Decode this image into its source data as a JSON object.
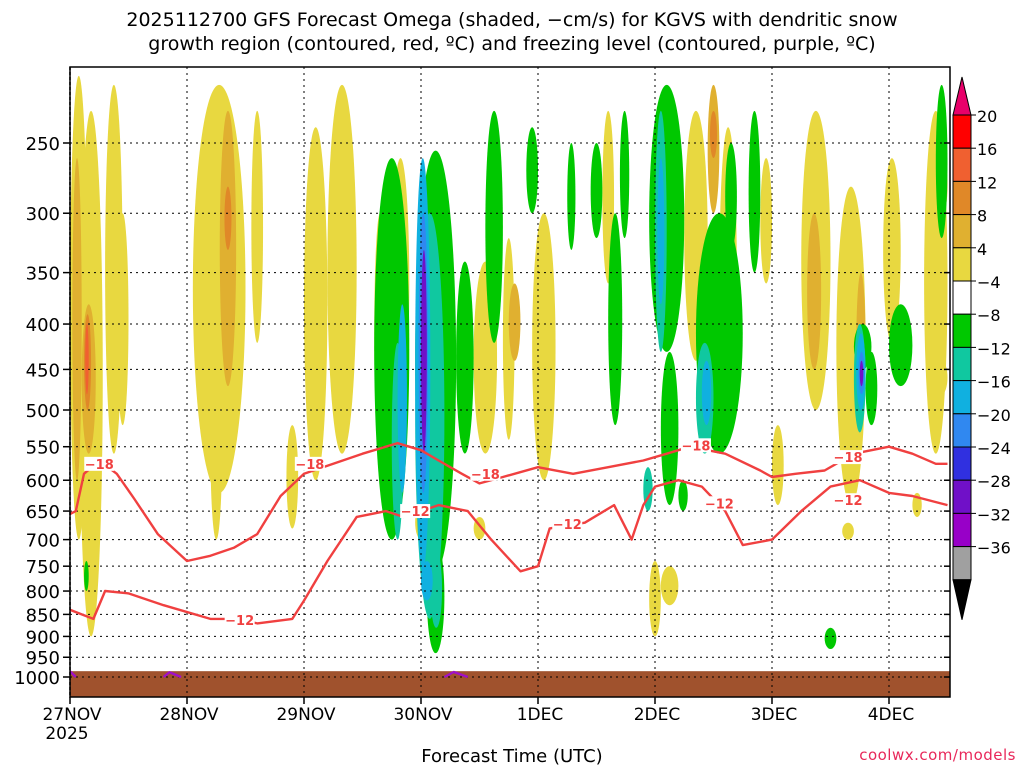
{
  "title": {
    "line1": "2025112700 GFS Forecast Omega (shaded, −cm/s) for KGVS with dendritic snow",
    "line2": "growth region (contoured, red, ºC) and freezing level (contoured, purple, ºC)"
  },
  "xlabel": "Forecast Time (UTC)",
  "credit": "coolwx.com/models",
  "chart_data": {
    "type": "heatmap",
    "title": "2025112700 GFS Forecast Omega (shaded, −cm/s) for KGVS with dendritic snow growth region (contoured, red, ºC) and freezing level (contoured, purple, ºC)",
    "xlabel": "Forecast Time (UTC)",
    "ylabel": "",
    "x_ticks": [
      "27NOV",
      "28NOV",
      "29NOV",
      "30NOV",
      "1DEC",
      "2DEC",
      "3DEC",
      "4DEC"
    ],
    "x_tick_sublabel": "2025",
    "xlim_days_from_27NOV": [
      0,
      7.5
    ],
    "y_ticks": [
      250,
      300,
      350,
      400,
      450,
      500,
      550,
      600,
      650,
      700,
      750,
      800,
      850,
      900,
      950,
      1000
    ],
    "y_axis": "pressure (hPa), inverted, log scale",
    "ylim": [
      1030,
      200
    ],
    "grid": true,
    "colorbar": {
      "labels": [
        "20",
        "16",
        "12",
        "8",
        "4",
        "−4",
        "−8",
        "−12",
        "−16",
        "−20",
        "−24",
        "−28",
        "−32",
        "−36"
      ],
      "colors": [
        "#ff0000",
        "#f06030",
        "#e08828",
        "#e0b030",
        "#e8d840",
        "#ffffff",
        "#00c800",
        "#10c8a0",
        "#10b0e0",
        "#3088f0",
        "#3030e0",
        "#7010c8",
        "#9800c8",
        "#a0a0a0"
      ],
      "top_arrow_color": "#e8006a",
      "bottom_arrow_color": "#000000"
    },
    "contours": [
      {
        "series": "red",
        "label": "−18",
        "points": [
          [
            0,
            655
          ],
          [
            0.05,
            650
          ],
          [
            0.12,
            590
          ],
          [
            0.25,
            570
          ],
          [
            0.4,
            590
          ],
          [
            0.55,
            630
          ],
          [
            0.75,
            690
          ],
          [
            1.0,
            740
          ],
          [
            1.2,
            730
          ],
          [
            1.4,
            715
          ],
          [
            1.6,
            690
          ],
          [
            1.8,
            625
          ],
          [
            2.0,
            590
          ],
          [
            2.5,
            560
          ],
          [
            2.8,
            545
          ],
          [
            3.0,
            555
          ],
          [
            3.15,
            570
          ],
          [
            3.35,
            590
          ],
          [
            3.5,
            605
          ],
          [
            3.7,
            595
          ],
          [
            4.0,
            580
          ],
          [
            4.3,
            590
          ],
          [
            4.6,
            580
          ],
          [
            4.9,
            570
          ],
          [
            5.1,
            560
          ],
          [
            5.3,
            550
          ],
          [
            5.6,
            560
          ],
          [
            5.9,
            585
          ],
          [
            6.0,
            595
          ],
          [
            6.2,
            590
          ],
          [
            6.45,
            585
          ],
          [
            6.7,
            560
          ],
          [
            7.0,
            550
          ],
          [
            7.2,
            560
          ],
          [
            7.4,
            575
          ],
          [
            7.5,
            575
          ]
        ]
      },
      {
        "series": "red",
        "label": "−12",
        "points": [
          [
            0,
            840
          ],
          [
            0.1,
            850
          ],
          [
            0.2,
            860
          ],
          [
            0.3,
            800
          ],
          [
            0.5,
            805
          ],
          [
            0.8,
            830
          ],
          [
            1.2,
            860
          ],
          [
            1.45,
            860
          ],
          [
            1.6,
            870
          ],
          [
            1.9,
            860
          ],
          [
            2.0,
            820
          ],
          [
            2.2,
            740
          ],
          [
            2.45,
            660
          ],
          [
            2.7,
            650
          ],
          [
            2.85,
            660
          ],
          [
            3.0,
            650
          ],
          [
            3.15,
            640
          ],
          [
            3.4,
            650
          ],
          [
            3.6,
            700
          ],
          [
            3.85,
            760
          ],
          [
            4.0,
            750
          ],
          [
            4.1,
            680
          ],
          [
            4.4,
            670
          ],
          [
            4.65,
            640
          ],
          [
            4.8,
            700
          ],
          [
            4.9,
            640
          ],
          [
            5.0,
            610
          ],
          [
            5.2,
            600
          ],
          [
            5.4,
            610
          ],
          [
            5.6,
            650
          ],
          [
            5.75,
            710
          ],
          [
            6.0,
            700
          ],
          [
            6.25,
            650
          ],
          [
            6.5,
            610
          ],
          [
            6.75,
            600
          ],
          [
            7.0,
            620
          ],
          [
            7.2,
            625
          ],
          [
            7.5,
            640
          ]
        ]
      },
      {
        "series": "purple",
        "label": "0",
        "points": [
          [
            0,
            985
          ],
          [
            0.05,
            1000
          ]
        ]
      },
      {
        "series": "purple",
        "label": "0",
        "points": [
          [
            0.8,
            1000
          ],
          [
            0.85,
            988
          ],
          [
            0.95,
            1000
          ]
        ]
      },
      {
        "series": "purple",
        "label": "0",
        "points": [
          [
            3.2,
            1000
          ],
          [
            3.28,
            987
          ],
          [
            3.4,
            1000
          ]
        ]
      }
    ],
    "omega_features": [
      {
        "region": "upward motion maximum, −28 to −32 cm/s",
        "time": "30NOV",
        "pressure_range": [
          340,
          520
        ]
      },
      {
        "region": "upward motion band, −4 to −16 cm/s",
        "time": "29NOV–30NOV",
        "pressure_range": [
          260,
          930
        ]
      },
      {
        "region": "upward motion maximum, −28 cm/s",
        "time": "4DEC",
        "pressure_range": [
          420,
          500
        ]
      },
      {
        "region": "upward motion, −4 to −16 cm/s",
        "time": "2DEC–2DEC 12Z",
        "pressure_range": [
          220,
          640
        ]
      },
      {
        "region": "subsidence, 4 to 16 cm/s",
        "time": "27NOV–28NOV",
        "pressure_range": [
          220,
          920
        ]
      }
    ]
  }
}
